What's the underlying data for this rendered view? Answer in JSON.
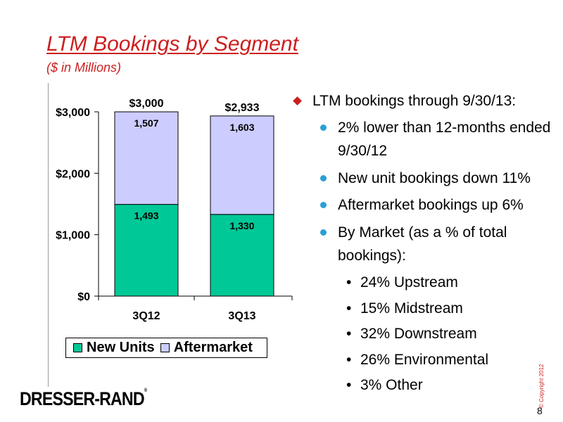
{
  "slide": {
    "title": "LTM Bookings by Segment",
    "subtitle": "($ in Millions)",
    "page_number": "8",
    "copyright": "© Copyright 2012",
    "logo": {
      "name": "DRESSER-RAND",
      "mark": "®"
    }
  },
  "chart_data": {
    "type": "bar",
    "stacked": true,
    "categories": [
      "3Q12",
      "3Q13"
    ],
    "series": [
      {
        "name": "New Units",
        "values": [
          1493,
          1330
        ],
        "labels": [
          "1,493",
          "1,330"
        ],
        "color": "#00c896"
      },
      {
        "name": "Aftermarket",
        "values": [
          1507,
          1603
        ],
        "labels": [
          "1,507",
          "1,603"
        ],
        "color": "#ccccff"
      }
    ],
    "totals": [
      3000,
      2933
    ],
    "total_labels": [
      "$3,000",
      "$2,933"
    ],
    "ylim": [
      0,
      3000
    ],
    "y_ticks": [
      0,
      1000,
      2000,
      3000
    ],
    "y_tick_labels": [
      "$0",
      "$1,000",
      "$2,000",
      "$3,000"
    ],
    "grid": false,
    "legend_position": "bottom"
  },
  "bullets": {
    "heading": "LTM bookings through 9/30/13:",
    "items": [
      "2% lower than 12-months ended 9/30/12",
      "New unit bookings down 11%",
      "Aftermarket bookings up 6%",
      "By Market (as a % of total bookings):"
    ],
    "market_items": [
      "24% Upstream",
      "15% Midstream",
      "32% Downstream",
      "26% Environmental",
      "3% Other"
    ]
  },
  "colors": {
    "accent": "#cc1f1f",
    "bullet_blue": "#2a9fd6"
  }
}
